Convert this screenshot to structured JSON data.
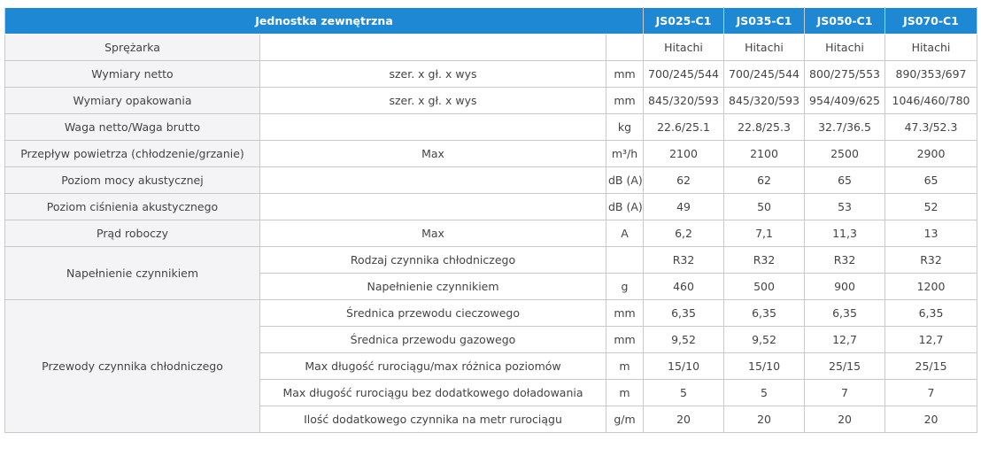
{
  "header": {
    "title": "Jednostka zewnętrzna",
    "models": [
      "JS025-C1",
      "JS035-C1",
      "JS050-C1",
      "JS070-C1"
    ]
  },
  "sections": [
    {
      "label": "Sprężarka",
      "items": [
        {
          "values": [
            "Hitachi",
            "Hitachi",
            "Hitachi",
            "Hitachi"
          ]
        }
      ]
    },
    {
      "label": "Wymiary netto",
      "items": [
        {
          "detail": "szer. x gł. x wys",
          "unit": "mm",
          "values": [
            "700/245/544",
            "700/245/544",
            "800/275/553",
            "890/353/697"
          ]
        }
      ]
    },
    {
      "label": "Wymiary opakowania",
      "items": [
        {
          "detail": "szer. x gł. x wys",
          "unit": "mm",
          "values": [
            "845/320/593",
            "845/320/593",
            "954/409/625",
            "1046/460/780"
          ]
        }
      ]
    },
    {
      "label": "Waga netto/Waga brutto",
      "items": [
        {
          "unit": "kg",
          "values": [
            "22.6/25.1",
            "22.8/25.3",
            "32.7/36.5",
            "47.3/52.3"
          ]
        }
      ]
    },
    {
      "label": "Przepływ powietrza (chłodzenie/grzanie)",
      "items": [
        {
          "detail": "Max",
          "unit": "m³/h",
          "values": [
            "2100",
            "2100",
            "2500",
            "2900"
          ]
        }
      ]
    },
    {
      "label": "Poziom mocy akustycznej",
      "items": [
        {
          "unit": "dB (A)",
          "values": [
            "62",
            "62",
            "65",
            "65"
          ]
        }
      ]
    },
    {
      "label": "Poziom ciśnienia akustycznego",
      "items": [
        {
          "unit": "dB (A)",
          "values": [
            "49",
            "50",
            "53",
            "52"
          ]
        }
      ]
    },
    {
      "label": "Prąd roboczy",
      "items": [
        {
          "detail": "Max",
          "unit": "A",
          "values": [
            "6,2",
            "7,1",
            "11,3",
            "13"
          ]
        }
      ]
    },
    {
      "label": "Napełnienie czynnikiem",
      "items": [
        {
          "detail": "Rodzaj czynnika chłodniczego",
          "values": [
            "R32",
            "R32",
            "R32",
            "R32"
          ]
        },
        {
          "detail": "Napełnienie czynnikiem",
          "unit": "g",
          "values": [
            "460",
            "500",
            "900",
            "1200"
          ]
        }
      ]
    },
    {
      "label": "Przewody czynnika chłodniczego",
      "items": [
        {
          "detail": "Średnica przewodu cieczowego",
          "unit": "mm",
          "values": [
            "6,35",
            "6,35",
            "6,35",
            "6,35"
          ]
        },
        {
          "detail": "Średnica przewodu gazowego",
          "unit": "mm",
          "values": [
            "9,52",
            "9,52",
            "12,7",
            "12,7"
          ]
        },
        {
          "detail": "Max długość rurociągu/max różnica poziomów",
          "unit": "m",
          "values": [
            "15/10",
            "15/10",
            "25/15",
            "25/15"
          ]
        },
        {
          "detail": "Max długość rurociągu bez dodatkowego doładowania",
          "unit": "m",
          "values": [
            "5",
            "5",
            "7",
            "7"
          ]
        },
        {
          "detail": "Ilość dodatkowego czynnika na metr rurociągu",
          "unit": "g/m",
          "values": [
            "20",
            "20",
            "20",
            "20"
          ]
        }
      ]
    }
  ]
}
